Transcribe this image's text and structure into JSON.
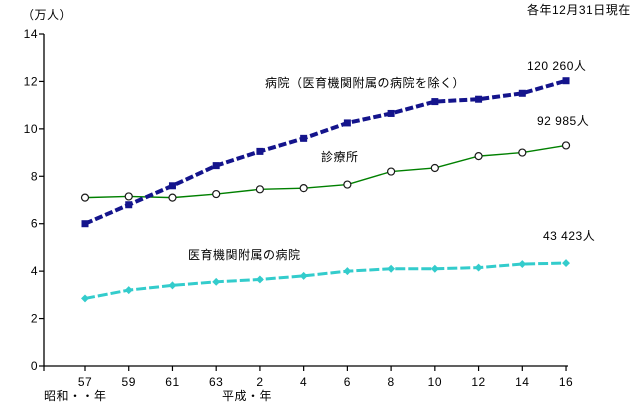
{
  "chart_data": {
    "type": "line",
    "title": "",
    "xlabel": "",
    "ylabel": "（万人）",
    "unit_label": "（万人）",
    "date_note": "各年12月31日現在",
    "categories": [
      "57",
      "59",
      "61",
      "63",
      "2",
      "4",
      "6",
      "8",
      "10",
      "12",
      "14",
      "16"
    ],
    "x_era_labels": {
      "showa": "昭和・・年",
      "heisei": "平成・年"
    },
    "ylim": [
      0,
      14
    ],
    "ytick_step": 2,
    "grid": false,
    "legend_position": "inline-annotations",
    "series": [
      {
        "name": "病院（医育機関附属の病院を除く）",
        "values": [
          6.0,
          6.8,
          7.6,
          8.45,
          9.05,
          9.6,
          10.25,
          10.65,
          11.15,
          11.25,
          11.5,
          12.03
        ],
        "end_value_label": "120 260人",
        "color": "#14148C",
        "marker": "square",
        "line_style": "dashed-thick"
      },
      {
        "name": "診療所",
        "values": [
          7.1,
          7.15,
          7.1,
          7.25,
          7.45,
          7.5,
          7.65,
          8.2,
          8.35,
          8.85,
          9.0,
          9.3
        ],
        "end_value_label": "92 985人",
        "color": "#008000",
        "marker": "circle-open",
        "line_style": "solid-thin"
      },
      {
        "name": "医育機関附属の病院",
        "values": [
          2.85,
          3.2,
          3.4,
          3.55,
          3.65,
          3.8,
          4.0,
          4.1,
          4.1,
          4.15,
          4.3,
          4.34
        ],
        "end_value_label": "43 423人",
        "color": "#33CCCC",
        "marker": "diamond",
        "line_style": "dashed-medium"
      }
    ],
    "annotations": {
      "unit_label": "（万人）",
      "date_note": "各年12月31日現在",
      "hospital_label": "病院（医育機関附属の病院を除く）",
      "hospital_value": "120 260人",
      "clinic_label": "診療所",
      "clinic_value": "92 985人",
      "univ_label": "医育機関附属の病院",
      "univ_value": "43 423人",
      "era_showa": "昭和・・年",
      "era_heisei": "平成・年"
    },
    "colors": {
      "hospital_line": "#14148C",
      "clinic_line": "#008000",
      "clinic_marker_stroke": "#1a1a1a",
      "univ_line": "#33CCCC",
      "axis": "#000000"
    }
  }
}
